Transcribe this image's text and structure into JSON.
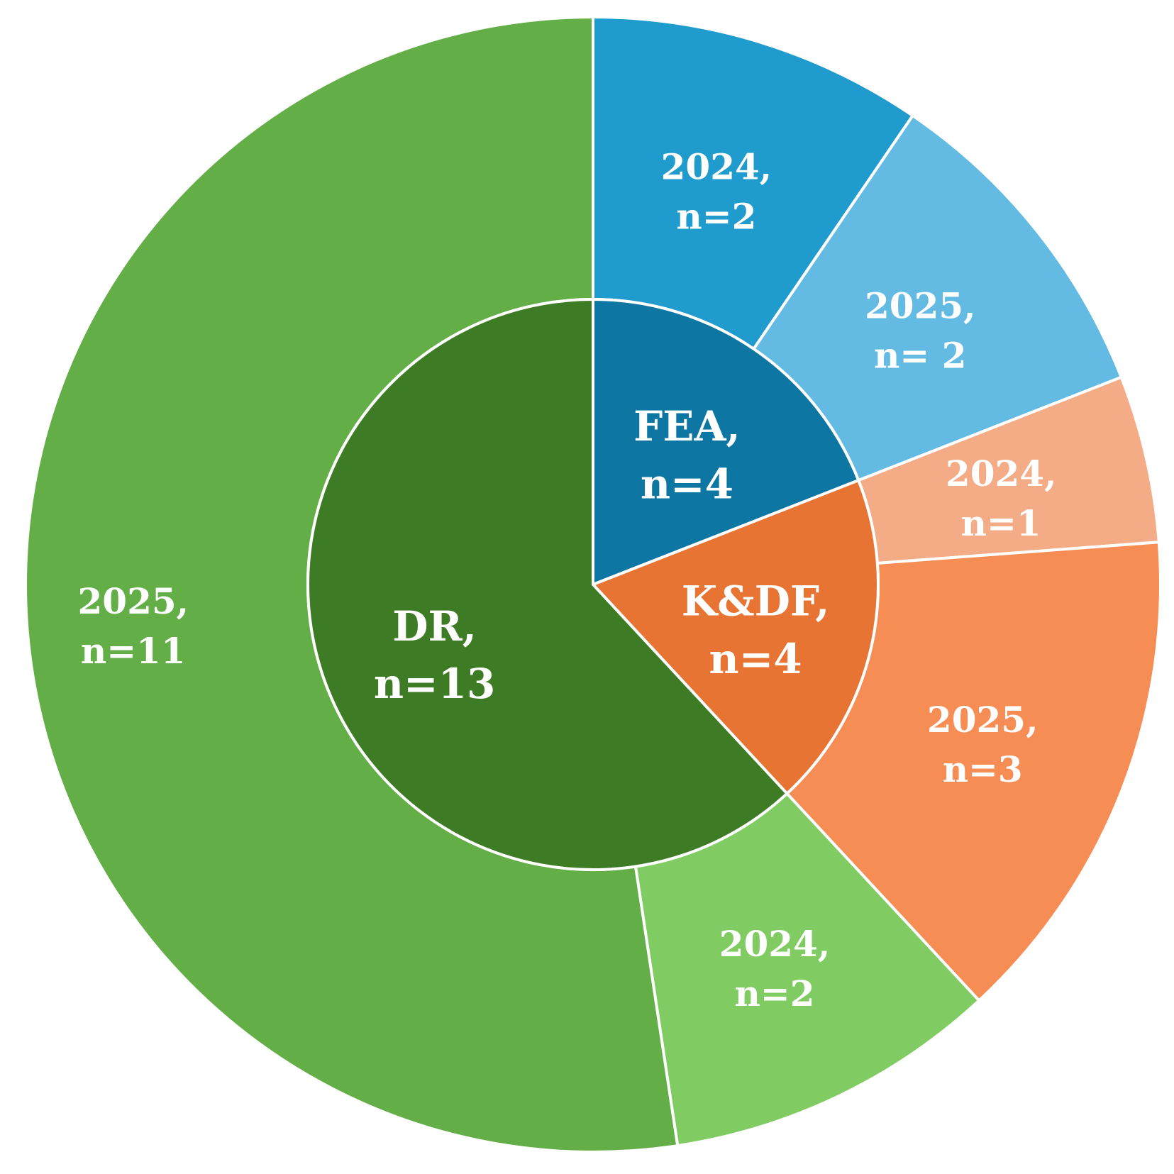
{
  "chart_data": {
    "type": "pie",
    "variant": "sunburst",
    "inner": [
      {
        "line1": "FEA,",
        "line2": "n=4",
        "value": 4,
        "color": "#0E76A2"
      },
      {
        "line1": "K&DF,",
        "line2": "n=4",
        "value": 4,
        "color": "#E87434"
      },
      {
        "line1": "DR,",
        "line2": "n=13",
        "value": 13,
        "color": "#3D7B24"
      }
    ],
    "outer": [
      {
        "line1": "2024,",
        "line2": "n=2",
        "value": 2,
        "color": "#1F9BCD"
      },
      {
        "line1": "2025,",
        "line2": "n= 2",
        "value": 2,
        "color": "#63BBE3"
      },
      {
        "line1": "2024,",
        "line2": "n=1",
        "value": 1,
        "color": "#F4AC86"
      },
      {
        "line1": "2025,",
        "line2": "n=3",
        "value": 3,
        "color": "#F68D54"
      },
      {
        "line1": "2024,",
        "line2": "n=2",
        "value": 2,
        "color": "#80CC63"
      },
      {
        "line1": "2025,",
        "line2": "n=11",
        "value": 11,
        "color": "#63AE47"
      }
    ]
  }
}
